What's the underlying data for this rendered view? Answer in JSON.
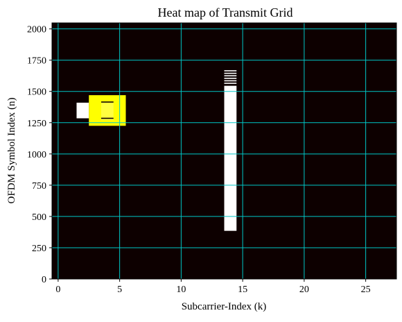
{
  "chart_data": {
    "type": "heatmap",
    "title": "Heat map of Transmit Grid",
    "xlabel": "Subcarrier-Index (k)",
    "ylabel": "OFDM Symbol Index (n)",
    "xlim": [
      -0.5,
      27.5
    ],
    "ylim": [
      0,
      2048
    ],
    "xticks": [
      0,
      5,
      10,
      15,
      20,
      25
    ],
    "yticks": [
      0,
      250,
      500,
      750,
      1000,
      1250,
      1500,
      1750,
      2000
    ],
    "grid": true,
    "colors": {
      "background": "#0d0000",
      "grid": "#00c8c8",
      "high": "#ffffff",
      "mid": "#ffff00",
      "mid_bright": "#ffff40"
    },
    "cells": [
      {
        "k_from": 1.5,
        "k_to": 2.5,
        "n_from": 1285,
        "n_to": 1410,
        "color": "high"
      },
      {
        "k_from": 2.5,
        "k_to": 5.5,
        "n_from": 1225,
        "n_to": 1470,
        "color": "mid"
      },
      {
        "k_from": 3.5,
        "k_to": 4.5,
        "n_from": 1270,
        "n_to": 1420,
        "color": "mid_bright"
      },
      {
        "k_from": 13.5,
        "k_to": 14.5,
        "n_from": 385,
        "n_to": 1545,
        "color": "high"
      }
    ],
    "stripes": [
      {
        "k_from": 3.5,
        "k_to": 4.5,
        "n": [
          1285,
          1415
        ],
        "color": "background"
      },
      {
        "k_from": 13.5,
        "k_to": 14.5,
        "n": [
          1565,
          1585,
          1605,
          1625,
          1645,
          1665
        ],
        "color": "high"
      }
    ]
  }
}
